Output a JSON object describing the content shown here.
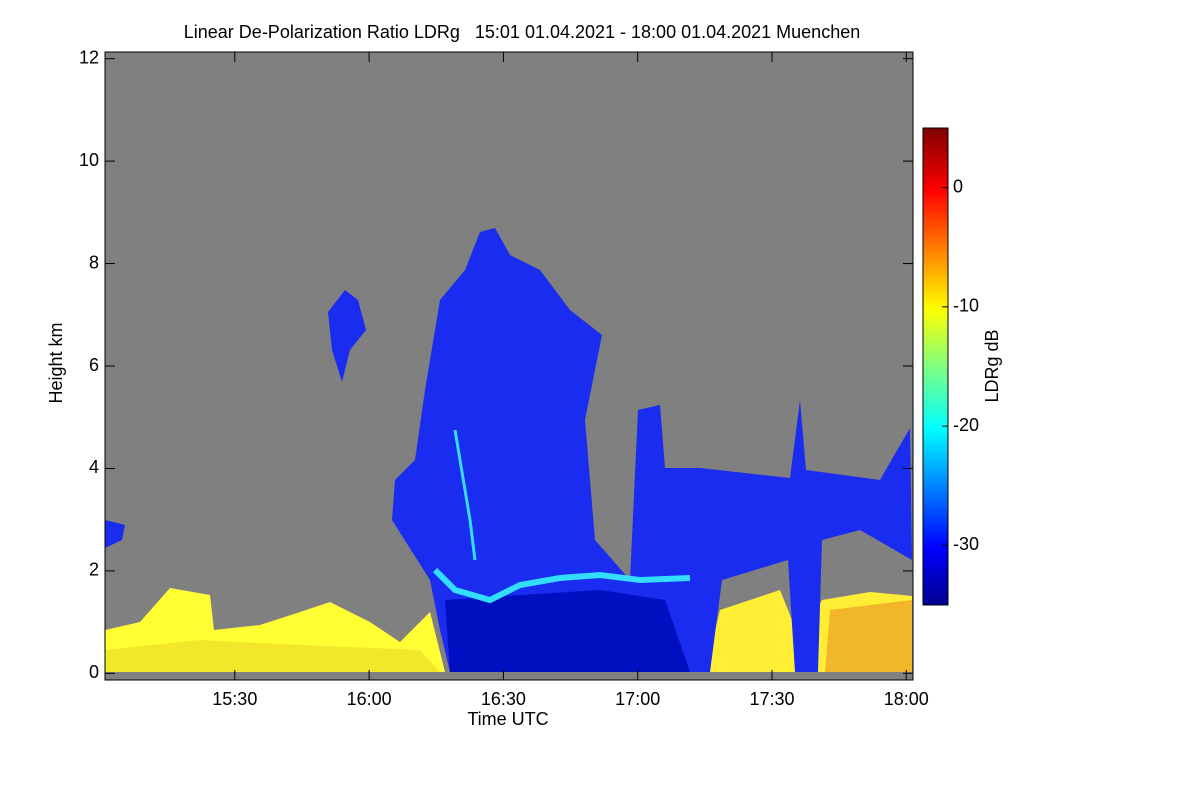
{
  "chart_data": {
    "type": "heatmap",
    "title": "Linear De-Polarization Ratio LDRg   15:01 01.04.2021 - 18:00 01.04.2021 Muenchen",
    "x_label": "Time UTC",
    "y_label": "Height km",
    "colorbar_label": "LDRg dB",
    "xlim": [
      901,
      1081.5
    ],
    "xticks": [
      {
        "value": 930,
        "label": "15:30"
      },
      {
        "value": 960,
        "label": "16:00"
      },
      {
        "value": 990,
        "label": "16:30"
      },
      {
        "value": 1020,
        "label": "17:00"
      },
      {
        "value": 1050,
        "label": "17:30"
      },
      {
        "value": 1080,
        "label": "18:00"
      }
    ],
    "ylim": [
      -0.13,
      12.13
    ],
    "yticks": [
      0,
      2,
      4,
      6,
      8,
      10,
      12
    ],
    "clim": [
      -35,
      5
    ],
    "cticks": [
      0,
      -10,
      -20,
      -30
    ]
  }
}
